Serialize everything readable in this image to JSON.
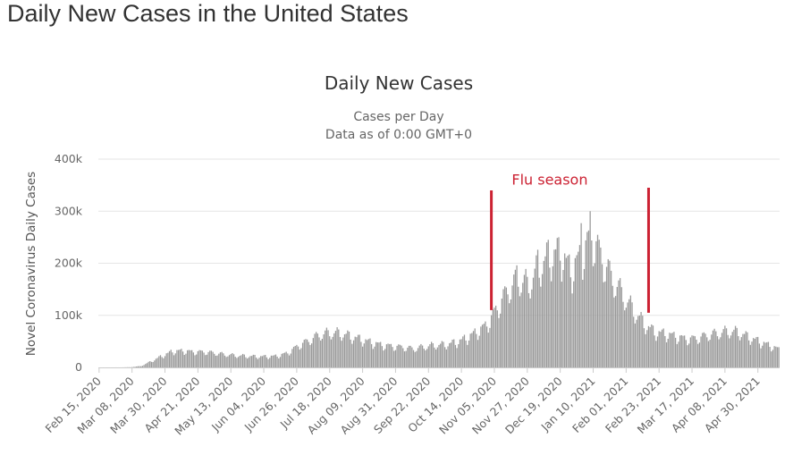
{
  "page": {
    "title": "Daily New Cases in the United States"
  },
  "chart_data": {
    "type": "bar",
    "title": "Daily New Cases",
    "subtitle_lines": [
      "Cases per Day",
      "Data as of 0:00 GMT+0"
    ],
    "ylabel": "Novel Coronavirus Daily Cases",
    "xlabel": "",
    "ylim": [
      0,
      400000
    ],
    "y_ticks": [
      {
        "value": 0,
        "label": "0"
      },
      {
        "value": 100000,
        "label": "100k"
      },
      {
        "value": 200000,
        "label": "200k"
      },
      {
        "value": 300000,
        "label": "300k"
      },
      {
        "value": 400000,
        "label": "400k"
      }
    ],
    "x_tick_labels": [
      "Feb 15, 2020",
      "Mar 08, 2020",
      "Mar 30, 2020",
      "Apr 21, 2020",
      "May 13, 2020",
      "Jun 04, 2020",
      "Jun 26, 2020",
      "Jul 18, 2020",
      "Aug 09, 2020",
      "Aug 31, 2020",
      "Sep 22, 2020",
      "Oct 14, 2020",
      "Nov 05, 2020",
      "Nov 27, 2020",
      "Dec 19, 2020",
      "Jan 10, 2021",
      "Feb 01, 2021",
      "Feb 23, 2021",
      "Mar 17, 2021",
      "Apr 08, 2021",
      "Apr 30, 2021"
    ],
    "start_date": "Feb 15, 2020",
    "end_date": "May 14, 2021",
    "grid": true,
    "bar_color": "#999999",
    "weekly_anchors": [
      {
        "date": "Feb 15, 2020",
        "value": 0
      },
      {
        "date": "Feb 29, 2020",
        "value": 50
      },
      {
        "date": "Mar 07, 2020",
        "value": 400
      },
      {
        "date": "Mar 14, 2020",
        "value": 2500
      },
      {
        "date": "Mar 21, 2020",
        "value": 12000
      },
      {
        "date": "Mar 28, 2020",
        "value": 22000
      },
      {
        "date": "Apr 04, 2020",
        "value": 31000
      },
      {
        "date": "Apr 11, 2020",
        "value": 32000
      },
      {
        "date": "Apr 18, 2020",
        "value": 30000
      },
      {
        "date": "Apr 25, 2020",
        "value": 30000
      },
      {
        "date": "May 02, 2020",
        "value": 28000
      },
      {
        "date": "May 09, 2020",
        "value": 25000
      },
      {
        "date": "May 16, 2020",
        "value": 23000
      },
      {
        "date": "May 23, 2020",
        "value": 22000
      },
      {
        "date": "May 30, 2020",
        "value": 21000
      },
      {
        "date": "Jun 06, 2020",
        "value": 21000
      },
      {
        "date": "Jun 13, 2020",
        "value": 22000
      },
      {
        "date": "Jun 20, 2020",
        "value": 28000
      },
      {
        "date": "Jun 27, 2020",
        "value": 42000
      },
      {
        "date": "Jul 04, 2020",
        "value": 52000
      },
      {
        "date": "Jul 11, 2020",
        "value": 63000
      },
      {
        "date": "Jul 18, 2020",
        "value": 67000
      },
      {
        "date": "Jul 25, 2020",
        "value": 66000
      },
      {
        "date": "Aug 01, 2020",
        "value": 60000
      },
      {
        "date": "Aug 08, 2020",
        "value": 54000
      },
      {
        "date": "Aug 15, 2020",
        "value": 48000
      },
      {
        "date": "Aug 22, 2020",
        "value": 43000
      },
      {
        "date": "Aug 29, 2020",
        "value": 41000
      },
      {
        "date": "Sep 05, 2020",
        "value": 39000
      },
      {
        "date": "Sep 12, 2020",
        "value": 36000
      },
      {
        "date": "Sep 19, 2020",
        "value": 40000
      },
      {
        "date": "Sep 26, 2020",
        "value": 43000
      },
      {
        "date": "Oct 03, 2020",
        "value": 44000
      },
      {
        "date": "Oct 10, 2020",
        "value": 48000
      },
      {
        "date": "Oct 17, 2020",
        "value": 56000
      },
      {
        "date": "Oct 24, 2020",
        "value": 68000
      },
      {
        "date": "Oct 31, 2020",
        "value": 82000
      },
      {
        "date": "Nov 07, 2020",
        "value": 115000
      },
      {
        "date": "Nov 14, 2020",
        "value": 150000
      },
      {
        "date": "Nov 21, 2020",
        "value": 170000
      },
      {
        "date": "Nov 28, 2020",
        "value": 160000
      },
      {
        "date": "Dec 05, 2020",
        "value": 195000
      },
      {
        "date": "Dec 12, 2020",
        "value": 215000
      },
      {
        "date": "Dec 19, 2020",
        "value": 225000
      },
      {
        "date": "Dec 26, 2020",
        "value": 185000
      },
      {
        "date": "Jan 02, 2021",
        "value": 215000
      },
      {
        "date": "Jan 09, 2021",
        "value": 255000
      },
      {
        "date": "Jan 16, 2021",
        "value": 210000
      },
      {
        "date": "Jan 23, 2021",
        "value": 170000
      },
      {
        "date": "Jan 30, 2021",
        "value": 140000
      },
      {
        "date": "Feb 06, 2021",
        "value": 110000
      },
      {
        "date": "Feb 13, 2021",
        "value": 85000
      },
      {
        "date": "Feb 20, 2021",
        "value": 68000
      },
      {
        "date": "Feb 27, 2021",
        "value": 65000
      },
      {
        "date": "Mar 06, 2021",
        "value": 60000
      },
      {
        "date": "Mar 13, 2021",
        "value": 55000
      },
      {
        "date": "Mar 20, 2021",
        "value": 56000
      },
      {
        "date": "Mar 27, 2021",
        "value": 62000
      },
      {
        "date": "Apr 03, 2021",
        "value": 66000
      },
      {
        "date": "Apr 10, 2021",
        "value": 70000
      },
      {
        "date": "Apr 17, 2021",
        "value": 68000
      },
      {
        "date": "Apr 24, 2021",
        "value": 58000
      },
      {
        "date": "May 01, 2021",
        "value": 50000
      },
      {
        "date": "May 08, 2021",
        "value": 42000
      },
      {
        "date": "May 14, 2021",
        "value": 35000
      }
    ],
    "spikes": [
      {
        "date": "Jan 08, 2021",
        "value": 300000
      },
      {
        "date": "Jan 02, 2021",
        "value": 277000
      },
      {
        "date": "Dec 18, 2020",
        "value": 250000
      },
      {
        "date": "Dec 11, 2020",
        "value": 245000
      },
      {
        "date": "Dec 04, 2020",
        "value": 226000
      },
      {
        "date": "Nov 20, 2020",
        "value": 196000
      }
    ],
    "annotations": [
      {
        "type": "vline",
        "date": "Nov 03, 2020",
        "from": 110000,
        "to": 340000,
        "color": "#cc2233"
      },
      {
        "type": "vline",
        "date": "Feb 16, 2021",
        "from": 105000,
        "to": 345000,
        "color": "#cc2233"
      },
      {
        "type": "text",
        "label": "Flu season",
        "date": "Dec 12, 2020",
        "value": 360000,
        "color": "#cc2233"
      }
    ]
  }
}
